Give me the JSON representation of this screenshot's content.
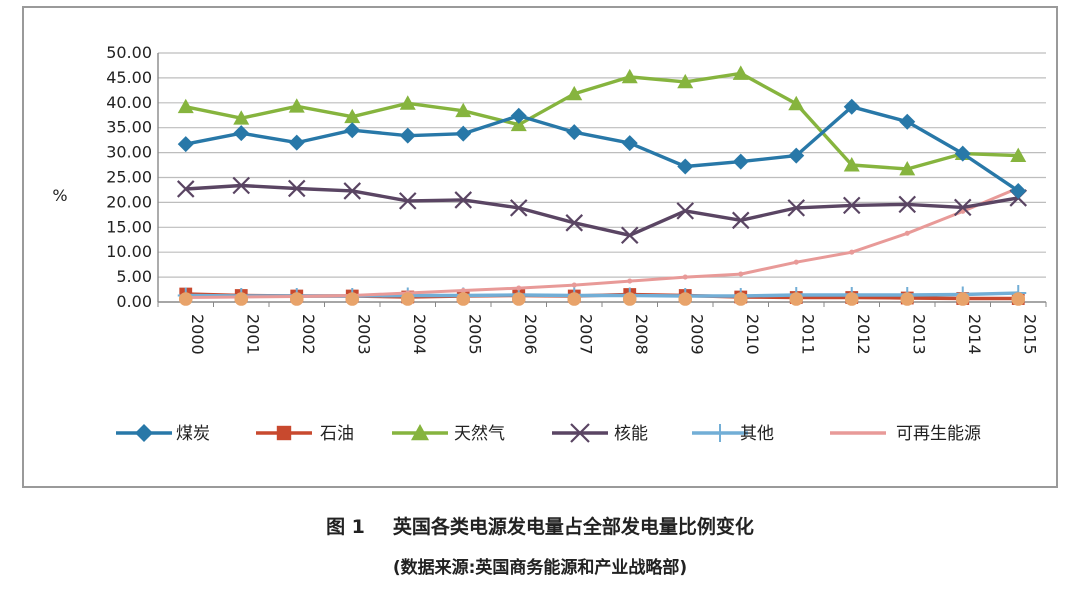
{
  "caption": {
    "figure_label": "图 1",
    "title": "英国各类电源发电量占全部发电量比例变化",
    "source": "(数据来源:英国商务能源和产业战略部)"
  },
  "chart_data": {
    "type": "line",
    "ylabel": "%",
    "xlabel": "",
    "ylim": [
      0,
      50
    ],
    "yticks": [
      "0.00",
      "5.00",
      "10.00",
      "15.00",
      "20.00",
      "25.00",
      "30.00",
      "35.00",
      "40.00",
      "45.00",
      "50.00"
    ],
    "grid": true,
    "legend_position": "bottom",
    "categories": [
      "2000",
      "2001",
      "2002",
      "2003",
      "2004",
      "2005",
      "2006",
      "2007",
      "2008",
      "2009",
      "2010",
      "2011",
      "2012",
      "2013",
      "2014",
      "2015"
    ],
    "series": [
      {
        "name": "煤炭",
        "marker": "diamond",
        "color": "#2878a8",
        "values": [
          31.7,
          33.9,
          32.0,
          34.5,
          33.4,
          33.8,
          37.4,
          34.1,
          31.9,
          27.2,
          28.2,
          29.4,
          39.2,
          36.2,
          29.8,
          22.3
        ]
      },
      {
        "name": "石油",
        "marker": "square",
        "color": "#c8492e",
        "values": [
          1.6,
          1.3,
          1.2,
          1.2,
          1.0,
          1.2,
          1.3,
          1.2,
          1.5,
          1.3,
          1.0,
          0.9,
          0.9,
          0.8,
          0.7,
          0.7
        ]
      },
      {
        "name": "天然气",
        "marker": "triangle",
        "color": "#86b43e",
        "values": [
          39.2,
          36.9,
          39.3,
          37.2,
          39.9,
          38.4,
          35.6,
          41.8,
          45.2,
          44.2,
          45.9,
          39.8,
          27.5,
          26.7,
          29.8,
          29.4
        ]
      },
      {
        "name": "核能",
        "marker": "x",
        "color": "#5a4563",
        "values": [
          22.7,
          23.4,
          22.8,
          22.3,
          20.3,
          20.5,
          18.9,
          15.9,
          13.4,
          18.3,
          16.4,
          18.9,
          19.4,
          19.6,
          19.0,
          20.9
        ]
      },
      {
        "name": "其他",
        "marker": "plus",
        "color": "#72aed6",
        "values": [
          1.3,
          1.2,
          1.2,
          1.2,
          1.3,
          1.3,
          1.4,
          1.3,
          1.3,
          1.2,
          1.2,
          1.4,
          1.4,
          1.4,
          1.5,
          1.8
        ]
      },
      {
        "name": "可再生能源",
        "marker": "circle",
        "color": "#e89a98",
        "values": [
          0.9,
          1.0,
          1.1,
          1.3,
          1.8,
          2.3,
          2.8,
          3.4,
          4.2,
          5.0,
          5.6,
          8.0,
          10.0,
          13.8,
          18.2,
          22.9
        ]
      }
    ]
  }
}
